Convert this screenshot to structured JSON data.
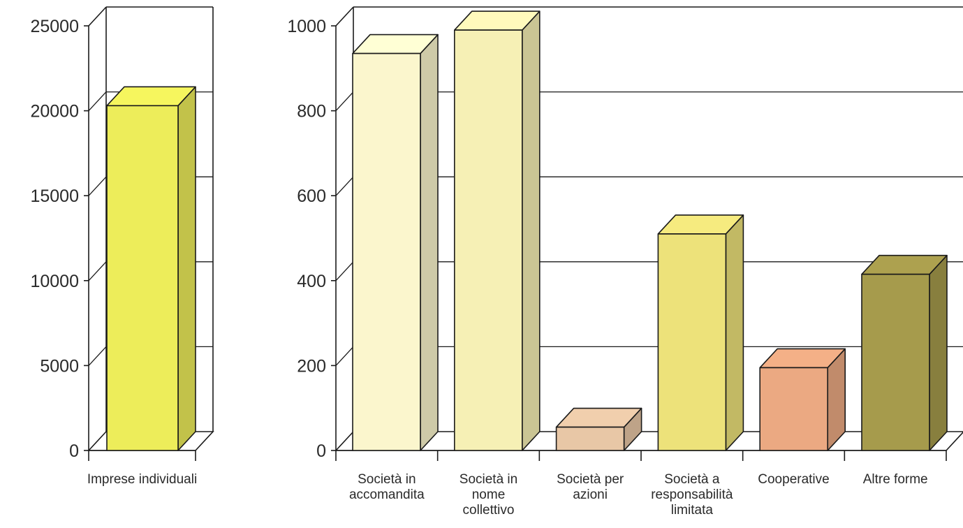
{
  "chart_data": [
    {
      "type": "bar",
      "title": "",
      "xlabel": "",
      "ylabel": "",
      "ylim": [
        0,
        25000
      ],
      "yticks": [
        "0",
        "5000",
        "10000",
        "15000",
        "20000",
        "25000"
      ],
      "grid": true,
      "legend": "none",
      "categories": [
        {
          "lines": [
            "Imprese individuali"
          ],
          "value": 20300,
          "color": "#eded5a"
        }
      ]
    },
    {
      "type": "bar",
      "title": "",
      "xlabel": "",
      "ylabel": "",
      "ylim": [
        0,
        1000
      ],
      "yticks": [
        "0",
        "200",
        "400",
        "600",
        "800",
        "1000"
      ],
      "grid": true,
      "legend": "none",
      "categories": [
        {
          "lines": [
            "Società in",
            "accomandita"
          ],
          "value": 935,
          "color": "#fbf6cd"
        },
        {
          "lines": [
            "Società in",
            "nome",
            "collettivo"
          ],
          "value": 990,
          "color": "#f6f0b5"
        },
        {
          "lines": [
            "Società per",
            "azioni"
          ],
          "value": 55,
          "color": "#e8c7a6"
        },
        {
          "lines": [
            "Società a",
            "responsabilità",
            "limitata"
          ],
          "value": 510,
          "color": "#ede27a"
        },
        {
          "lines": [
            "Cooperative"
          ],
          "value": 195,
          "color": "#eba982"
        },
        {
          "lines": [
            "Altre forme"
          ],
          "value": 415,
          "color": "#a69b4c"
        }
      ]
    }
  ]
}
